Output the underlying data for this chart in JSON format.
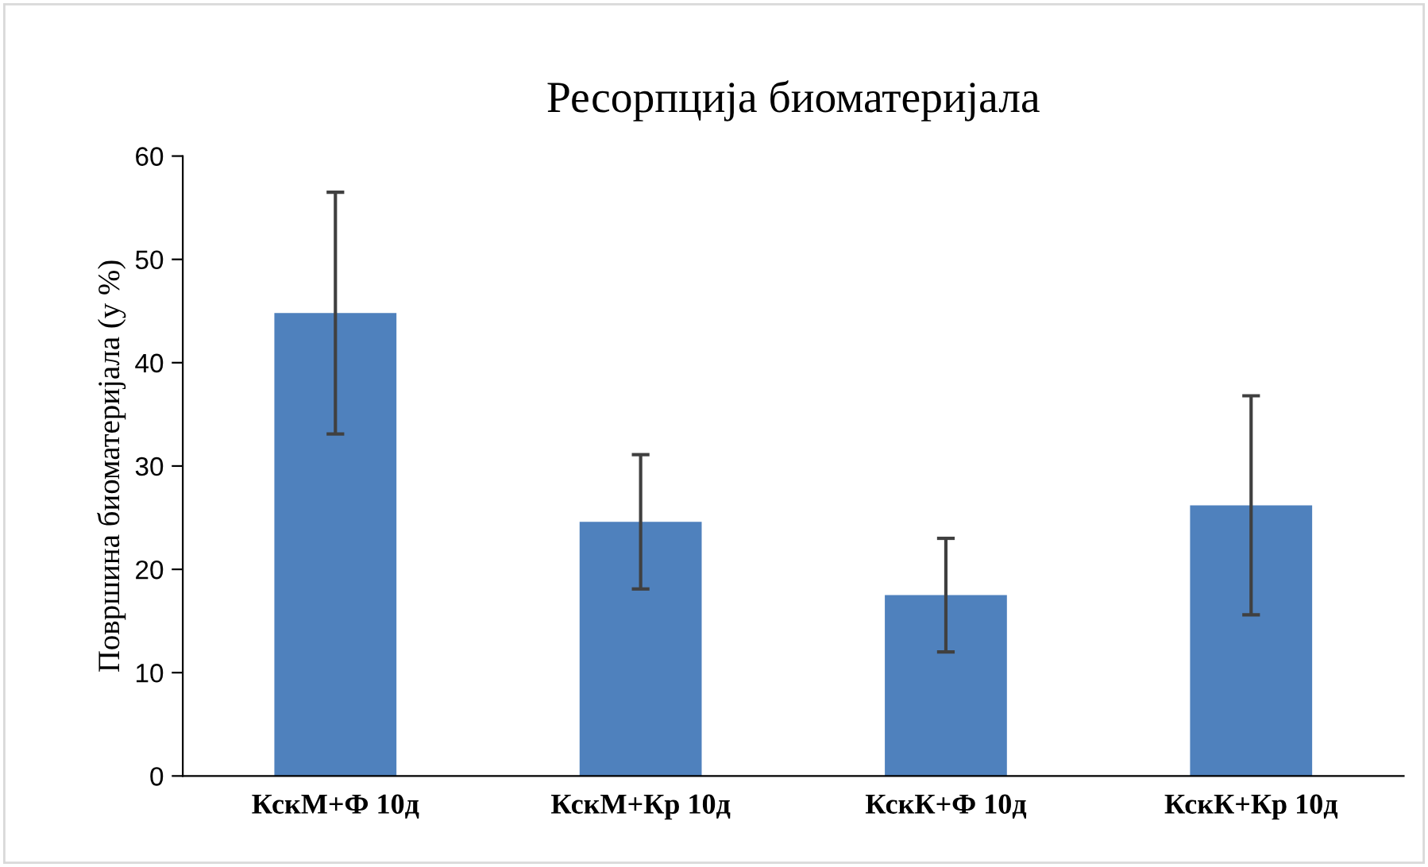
{
  "chart_data": {
    "type": "bar",
    "title": "Ресорпција биоматеријала",
    "ylabel": "Површина биоматеријала (у %)",
    "categories": [
      "КскМ+Ф 10д",
      "КскМ+Кр 10д",
      "КскК+Ф 10д",
      "КскК+Кр 10д"
    ],
    "values": [
      44.8,
      24.6,
      17.5,
      26.2
    ],
    "errors": [
      11.7,
      6.5,
      5.5,
      10.6
    ],
    "color": "#4f81bd",
    "ylim": [
      0,
      60
    ],
    "yticks": [
      0,
      10,
      20,
      30,
      40,
      50,
      60
    ],
    "grid": false
  }
}
